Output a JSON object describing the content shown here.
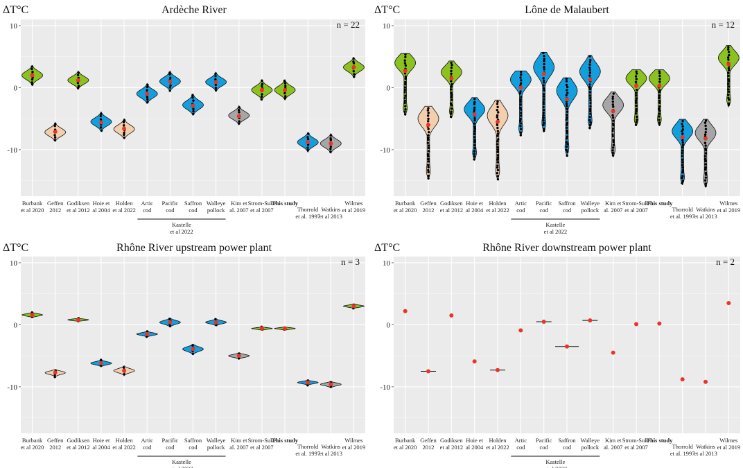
{
  "y_label": "ΔT°C",
  "categories": [
    {
      "line1": "Burbank",
      "line2": "et al 2020",
      "bold": false,
      "group": "green"
    },
    {
      "line1": "Geffen",
      "line2": "2012",
      "bold": false,
      "group": "peach"
    },
    {
      "line1": "Godiksen",
      "line2": "et al 2012",
      "bold": false,
      "group": "green"
    },
    {
      "line1": "Hoie et",
      "line2": "al 2004",
      "bold": false,
      "group": "blue"
    },
    {
      "line1": "Holden",
      "line2": "et al 2022",
      "bold": false,
      "group": "peach"
    },
    {
      "line1": "Artic",
      "line2": "cod",
      "bold": false,
      "group": "blue"
    },
    {
      "line1": "Pacific",
      "line2": "cod",
      "bold": false,
      "group": "blue"
    },
    {
      "line1": "Saffron",
      "line2": "cod",
      "bold": false,
      "group": "blue"
    },
    {
      "line1": "Walleye",
      "line2": "pollock",
      "bold": false,
      "group": "blue"
    },
    {
      "line1": "Kim et",
      "line2": "al. 2007",
      "bold": false,
      "group": "grey"
    },
    {
      "line1": "Strom-Suke",
      "line2": "et al 2007",
      "bold": false,
      "group": "green"
    },
    {
      "line1": "This study",
      "line2": "",
      "bold": true,
      "group": "green"
    },
    {
      "line1": "Thorrold",
      "line2": "et al. 1997",
      "bold": false,
      "group": "blue"
    },
    {
      "line1": "Watkins",
      "line2": "et al 2013",
      "bold": false,
      "group": "grey"
    },
    {
      "line1": "Wilmes",
      "line2": "et al 2019",
      "bold": false,
      "group": "green"
    }
  ],
  "bracket_label_line1": "Kastelle",
  "bracket_label_line2": "et al 2022",
  "colors": {
    "green": "#8cc21f",
    "peach": "#f3cfae",
    "blue": "#139fde",
    "grey": "#a6a6a6",
    "mean": "#e8342a",
    "point": "#000000",
    "panel_bg": "#ebebeb",
    "grid": "#ffffff"
  },
  "chart_data": [
    {
      "type": "violin",
      "title": "Ardèche River",
      "n_label": "n = 22",
      "ylim": [
        -17.5,
        11
      ],
      "yticks": [
        10,
        0,
        -10
      ],
      "medians": [
        2.0,
        -7.2,
        1.2,
        -5.5,
        -6.7,
        -1.0,
        1.0,
        -2.8,
        0.9,
        -4.5,
        -0.4,
        -0.4,
        -8.8,
        -9.0,
        3.3
      ],
      "ranges": [
        [
          0.3,
          3.6
        ],
        [
          -8.7,
          -5.6
        ],
        [
          -0.3,
          2.7
        ],
        [
          -7.1,
          -3.9
        ],
        [
          -8.3,
          -5.0
        ],
        [
          -2.6,
          0.7
        ],
        [
          -0.6,
          2.7
        ],
        [
          -4.5,
          -1.0
        ],
        [
          -0.6,
          2.5
        ],
        [
          -6.0,
          -2.9
        ],
        [
          -2.0,
          1.3
        ],
        [
          -2.0,
          1.3
        ],
        [
          -10.4,
          -7.2
        ],
        [
          -10.6,
          -7.4
        ],
        [
          1.6,
          4.9
        ]
      ],
      "means": [
        2.0,
        -7.1,
        1.2,
        -5.6,
        -6.6,
        -1.0,
        1.0,
        -2.9,
        0.9,
        -4.6,
        -0.4,
        -0.4,
        -8.8,
        -9.0,
        3.3
      ]
    },
    {
      "type": "violin",
      "title": "Lône de Malaubert",
      "n_label": "n = 12",
      "ylim": [
        -17.5,
        11
      ],
      "yticks": [
        10,
        0,
        -10
      ],
      "medians": [
        4.0,
        -5.0,
        2.5,
        -3.5,
        -4.5,
        1.3,
        3.3,
        -0.5,
        2.6,
        -2.8,
        1.5,
        1.5,
        -7.0,
        -7.3,
        4.8
      ],
      "ranges": [
        [
          -4.5,
          5.5
        ],
        [
          -14.8,
          -3.0
        ],
        [
          -4.9,
          4.3
        ],
        [
          -11.7,
          -1.6
        ],
        [
          -14.9,
          -2.0
        ],
        [
          -7.8,
          2.7
        ],
        [
          -7.2,
          5.7
        ],
        [
          -11.1,
          1.6
        ],
        [
          -6.7,
          5.2
        ],
        [
          -11.2,
          -0.7
        ],
        [
          -6.2,
          2.9
        ],
        [
          -6.2,
          2.9
        ],
        [
          -15.7,
          -5.1
        ],
        [
          -16.1,
          -5.1
        ],
        [
          -3.1,
          6.8
        ]
      ],
      "means": [
        2.7,
        -6.0,
        1.5,
        -4.3,
        -5.5,
        0.0,
        2.2,
        -1.9,
        1.3,
        -3.8,
        0.3,
        0.3,
        -8.0,
        -8.2,
        3.8
      ]
    },
    {
      "type": "violin",
      "title": "Rhône River upstream power plant",
      "n_label": "n = 3",
      "ylim": [
        -17.5,
        11
      ],
      "yticks": [
        10,
        0,
        -10
      ],
      "medians": [
        1.6,
        -7.7,
        0.8,
        -6.2,
        -7.4,
        -1.5,
        0.4,
        -3.9,
        0.4,
        -5.0,
        -0.6,
        -0.6,
        -9.3,
        -9.6,
        3.0
      ],
      "ranges": [
        [
          1.1,
          2.0
        ],
        [
          -8.5,
          -7.2
        ],
        [
          0.5,
          1.1
        ],
        [
          -6.8,
          -5.6
        ],
        [
          -8.2,
          -6.6
        ],
        [
          -2.0,
          -1.0
        ],
        [
          -0.4,
          1.1
        ],
        [
          -4.9,
          -3.1
        ],
        [
          -0.2,
          1.0
        ],
        [
          -5.6,
          -4.5
        ],
        [
          -0.9,
          -0.3
        ],
        [
          -0.9,
          -0.3
        ],
        [
          -9.8,
          -8.9
        ],
        [
          -10.2,
          -9.1
        ],
        [
          2.6,
          3.4
        ]
      ],
      "means": [
        1.6,
        -7.7,
        0.8,
        -6.2,
        -7.4,
        -1.5,
        0.4,
        -3.9,
        0.4,
        -5.0,
        -0.6,
        -0.6,
        -9.3,
        -9.6,
        3.0
      ]
    },
    {
      "type": "violin",
      "title": "Rhône River downstream power plant",
      "n_label": "n = 2",
      "ylim": [
        -17.5,
        11
      ],
      "yticks": [
        10,
        0,
        -10
      ],
      "medians": [
        2.2,
        -7.5,
        1.5,
        -5.9,
        -7.3,
        -0.9,
        0.5,
        -3.5,
        0.7,
        -4.5,
        0.1,
        0.2,
        -8.8,
        -9.2,
        3.5
      ],
      "ranges": [
        [
          2.2,
          2.2
        ],
        [
          -7.5,
          -7.5
        ],
        [
          1.5,
          1.5
        ],
        [
          -5.9,
          -5.9
        ],
        [
          -7.3,
          -7.3
        ],
        [
          -0.9,
          -0.9
        ],
        [
          0.5,
          0.5
        ],
        [
          -3.5,
          -3.5
        ],
        [
          0.7,
          0.7
        ],
        [
          -4.5,
          -4.5
        ],
        [
          0.1,
          0.1
        ],
        [
          0.2,
          0.2
        ],
        [
          -8.8,
          -8.8
        ],
        [
          -9.2,
          -9.2
        ],
        [
          3.5,
          3.5
        ]
      ],
      "means": [
        2.2,
        -7.5,
        1.5,
        -5.9,
        -7.3,
        -0.9,
        0.5,
        -3.5,
        0.7,
        -4.5,
        0.1,
        0.2,
        -8.8,
        -9.2,
        3.5
      ]
    }
  ]
}
